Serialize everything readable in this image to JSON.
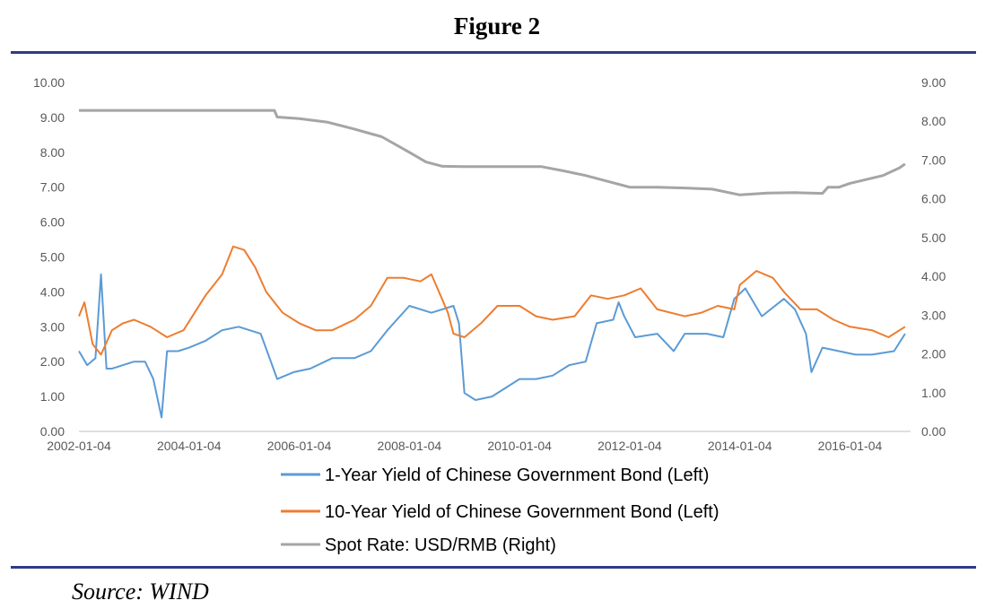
{
  "figure": {
    "title": "Figure 2",
    "source": "Source: WIND",
    "rule_color": "#2e3a87"
  },
  "chart_data": {
    "type": "line",
    "title": "",
    "xlabel": "",
    "ylabel": "",
    "x_ticks": [
      "2002-01-04",
      "2004-01-04",
      "2006-01-04",
      "2008-01-04",
      "2010-01-04",
      "2012-01-04",
      "2014-01-04",
      "2016-01-04"
    ],
    "x_range": [
      2002.0,
      2017.1
    ],
    "y_left_ticks": [
      "0.00",
      "1.00",
      "2.00",
      "3.00",
      "4.00",
      "5.00",
      "6.00",
      "7.00",
      "8.00",
      "9.00",
      "10.00"
    ],
    "y_left_range": [
      0,
      10
    ],
    "y_right_ticks": [
      "0.00",
      "1.00",
      "2.00",
      "3.00",
      "4.00",
      "5.00",
      "6.00",
      "7.00",
      "8.00",
      "9.00"
    ],
    "y_right_range": [
      0,
      9
    ],
    "grid": false,
    "legend_position": "bottom",
    "series": [
      {
        "name": "1-Year Yield of Chinese Government Bond  (Left)",
        "axis": "left",
        "color": "#5b9bd5",
        "x": [
          2002.0,
          2002.15,
          2002.3,
          2002.4,
          2002.5,
          2002.6,
          2002.8,
          2003.0,
          2003.2,
          2003.35,
          2003.5,
          2003.6,
          2003.8,
          2004.0,
          2004.3,
          2004.6,
          2004.9,
          2005.1,
          2005.3,
          2005.6,
          2005.9,
          2006.2,
          2006.6,
          2007.0,
          2007.3,
          2007.6,
          2008.0,
          2008.4,
          2008.8,
          2008.9,
          2009.0,
          2009.2,
          2009.5,
          2010.0,
          2010.3,
          2010.6,
          2010.9,
          2011.2,
          2011.4,
          2011.7,
          2011.8,
          2011.9,
          2012.1,
          2012.5,
          2012.8,
          2013.0,
          2013.4,
          2013.7,
          2013.9,
          2014.1,
          2014.4,
          2014.8,
          2015.0,
          2015.2,
          2015.3,
          2015.5,
          2015.8,
          2016.1,
          2016.4,
          2016.8,
          2017.0
        ],
        "values": [
          2.3,
          1.9,
          2.1,
          4.5,
          1.8,
          1.8,
          1.9,
          2.0,
          2.0,
          1.5,
          0.4,
          2.3,
          2.3,
          2.4,
          2.6,
          2.9,
          3.0,
          2.9,
          2.8,
          1.5,
          1.7,
          1.8,
          2.1,
          2.1,
          2.3,
          2.9,
          3.6,
          3.4,
          3.6,
          3.1,
          1.1,
          0.9,
          1.0,
          1.5,
          1.5,
          1.6,
          1.9,
          2.0,
          3.1,
          3.2,
          3.7,
          3.3,
          2.7,
          2.8,
          2.3,
          2.8,
          2.8,
          2.7,
          3.8,
          4.1,
          3.3,
          3.8,
          3.5,
          2.8,
          1.7,
          2.4,
          2.3,
          2.2,
          2.2,
          2.3,
          2.8
        ]
      },
      {
        "name": "10-Year Yield of Chinese Government Bond  (Left)",
        "axis": "left",
        "color": "#ed7d31",
        "x": [
          2002.0,
          2002.1,
          2002.25,
          2002.4,
          2002.6,
          2002.8,
          2003.0,
          2003.3,
          2003.6,
          2003.9,
          2004.1,
          2004.3,
          2004.6,
          2004.8,
          2005.0,
          2005.2,
          2005.4,
          2005.7,
          2006.0,
          2006.3,
          2006.6,
          2007.0,
          2007.3,
          2007.6,
          2007.9,
          2008.2,
          2008.4,
          2008.7,
          2008.8,
          2009.0,
          2009.3,
          2009.6,
          2010.0,
          2010.3,
          2010.6,
          2011.0,
          2011.3,
          2011.6,
          2011.9,
          2012.2,
          2012.5,
          2013.0,
          2013.3,
          2013.6,
          2013.9,
          2014.0,
          2014.3,
          2014.6,
          2014.8,
          2015.1,
          2015.4,
          2015.7,
          2016.0,
          2016.4,
          2016.7,
          2016.9,
          2017.0
        ],
        "values": [
          3.3,
          3.7,
          2.5,
          2.2,
          2.9,
          3.1,
          3.2,
          3.0,
          2.7,
          2.9,
          3.4,
          3.9,
          4.5,
          5.3,
          5.2,
          4.7,
          4.0,
          3.4,
          3.1,
          2.9,
          2.9,
          3.2,
          3.6,
          4.4,
          4.4,
          4.3,
          4.5,
          3.4,
          2.8,
          2.7,
          3.1,
          3.6,
          3.6,
          3.3,
          3.2,
          3.3,
          3.9,
          3.8,
          3.9,
          4.1,
          3.5,
          3.3,
          3.4,
          3.6,
          3.5,
          4.2,
          4.6,
          4.4,
          4.0,
          3.5,
          3.5,
          3.2,
          3.0,
          2.9,
          2.7,
          2.9,
          3.0
        ]
      },
      {
        "name": "Spot Rate: USD/RMB (Right)",
        "axis": "right",
        "color": "#a5a5a5",
        "x": [
          2002.0,
          2003.0,
          2004.0,
          2005.0,
          2005.55,
          2005.6,
          2006.0,
          2006.5,
          2007.0,
          2007.5,
          2008.0,
          2008.3,
          2008.6,
          2009.0,
          2009.5,
          2010.0,
          2010.4,
          2010.8,
          2011.2,
          2011.6,
          2012.0,
          2012.5,
          2013.0,
          2013.5,
          2014.0,
          2014.5,
          2015.0,
          2015.5,
          2015.6,
          2015.8,
          2016.0,
          2016.3,
          2016.6,
          2016.9,
          2017.0
        ],
        "values": [
          8.28,
          8.28,
          8.28,
          8.28,
          8.28,
          8.11,
          8.07,
          7.98,
          7.8,
          7.6,
          7.2,
          6.95,
          6.84,
          6.83,
          6.83,
          6.83,
          6.83,
          6.72,
          6.6,
          6.45,
          6.3,
          6.3,
          6.28,
          6.25,
          6.1,
          6.15,
          6.16,
          6.14,
          6.3,
          6.3,
          6.4,
          6.5,
          6.6,
          6.8,
          6.9
        ]
      }
    ]
  }
}
